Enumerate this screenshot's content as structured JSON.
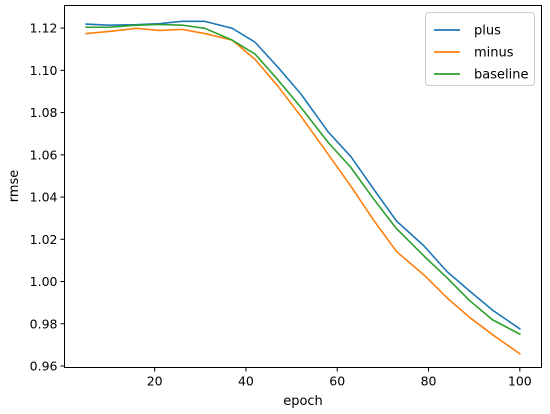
{
  "chart_data": {
    "type": "line",
    "xlabel": "epoch",
    "ylabel": "rmse",
    "xlim": [
      0.25,
      104.75
    ],
    "ylim": [
      0.9593,
      1.1307
    ],
    "xticks": [
      20,
      40,
      60,
      80,
      100
    ],
    "yticks": [
      0.96,
      0.98,
      1.0,
      1.02,
      1.04,
      1.06,
      1.08,
      1.1,
      1.12
    ],
    "xtick_labels": [
      "20",
      "40",
      "60",
      "80",
      "100"
    ],
    "ytick_labels": [
      "0.96",
      "0.98",
      "1.00",
      "1.02",
      "1.04",
      "1.06",
      "1.08",
      "1.10",
      "1.12"
    ],
    "grid": false,
    "legend_position": "top-right",
    "x": [
      5,
      10,
      16,
      21,
      26,
      31,
      37,
      42,
      47,
      52,
      58,
      63,
      68,
      73,
      79,
      84,
      89,
      94,
      100
    ],
    "series": [
      {
        "name": "plus",
        "color": "#1f77b4",
        "values": [
          1.1219,
          1.1214,
          1.1216,
          1.1221,
          1.1232,
          1.1232,
          1.1199,
          1.1133,
          1.1015,
          1.0889,
          1.0709,
          1.0591,
          1.0437,
          1.0286,
          1.0169,
          1.0048,
          0.9955,
          0.9865,
          0.9776
        ]
      },
      {
        "name": "minus",
        "color": "#ff7f0e",
        "values": [
          1.1174,
          1.1184,
          1.1199,
          1.1189,
          1.1194,
          1.1174,
          1.1143,
          1.1052,
          1.0925,
          1.0784,
          1.0603,
          1.0451,
          1.029,
          1.0142,
          1.0031,
          0.9924,
          0.983,
          0.9749,
          0.9658
        ]
      },
      {
        "name": "baseline",
        "color": "#2ca02c",
        "values": [
          1.1204,
          1.1204,
          1.1214,
          1.1217,
          1.1214,
          1.1199,
          1.1143,
          1.1077,
          1.0955,
          1.0826,
          1.0659,
          1.054,
          1.039,
          1.025,
          1.0121,
          1.0019,
          0.991,
          0.9819,
          0.9751
        ]
      }
    ]
  }
}
